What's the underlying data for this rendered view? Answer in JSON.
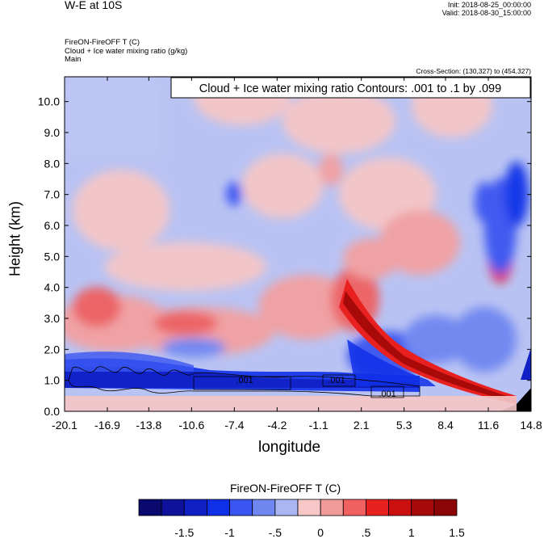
{
  "header": {
    "title": "W-E at 10S",
    "init": "Init: 2018-08-25_00:00:00",
    "valid": "Valid: 2018-08-30_15:00:00",
    "field_line1": "FireON-FireOFF T   (C)",
    "field_line2": "Cloud + Ice water mixing ratio   (g/kg)",
    "field_line3": "Main",
    "cross_section": "Cross-Section: (130,327) to (454,327)"
  },
  "chart_data": {
    "type": "heatmap",
    "title": "W-E at 10S",
    "annotation": "Cloud + Ice water mixing ratio Contours: .001 to .1 by .099",
    "xlabel": "longitude",
    "ylabel": "Height (km)",
    "x_ticks": [
      "-20.1",
      "-16.9",
      "-13.8",
      "-10.6",
      "-7.4",
      "-4.2",
      "-1.1",
      "2.1",
      "5.3",
      "8.4",
      "11.6",
      "14.8"
    ],
    "y_ticks": [
      "0.0",
      "1.0",
      "2.0",
      "3.0",
      "4.0",
      "5.0",
      "6.0",
      "7.0",
      "8.0",
      "9.0",
      "10.0"
    ],
    "xlim": [
      -20.1,
      14.8
    ],
    "ylim": [
      0,
      10.8
    ],
    "contour_labels": [
      ".001",
      ".001",
      ".001"
    ],
    "colorbar": {
      "title": "FireON-FireOFF T  (C)",
      "tick_labels": [
        "-1.5",
        "-1",
        "-.5",
        "0",
        ".5",
        "1",
        "1.5"
      ],
      "colors": [
        "#0a0a6e",
        "#0d119c",
        "#1020c4",
        "#1030e8",
        "#3a55f0",
        "#6f86f0",
        "#a9b6f2",
        "#f8c7c7",
        "#f39a9a",
        "#ef6060",
        "#e82020",
        "#cc1010",
        "#a80a0a",
        "#8a0505"
      ]
    }
  }
}
